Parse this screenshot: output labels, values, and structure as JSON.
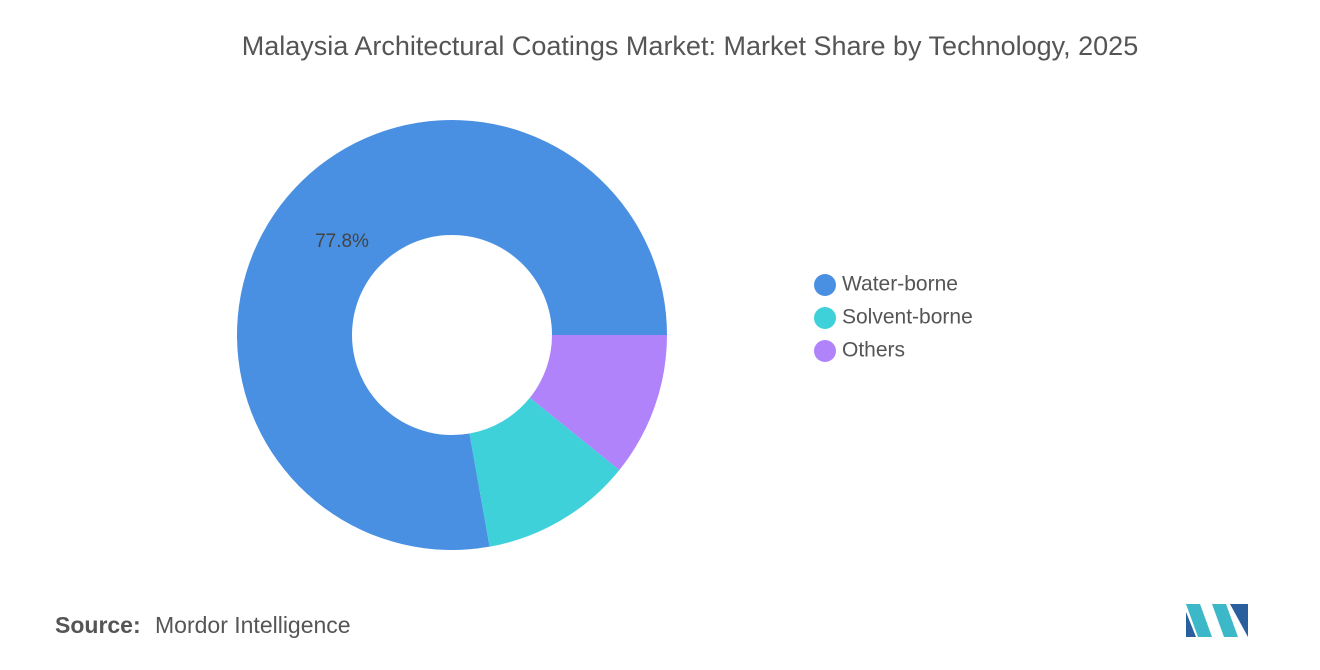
{
  "chart_data": {
    "type": "pie",
    "title": "Malaysia Architectural Coatings Market: Market Share by Technology, 2025",
    "categories": [
      "Water-borne",
      "Solvent-borne",
      "Others"
    ],
    "values": [
      77.8,
      11.4,
      10.8
    ],
    "value_labels": [
      "77.8%",
      null,
      null
    ],
    "colors": [
      "#4a90e2",
      "#3ed1da",
      "#b083fb"
    ],
    "legend": "right"
  },
  "source": {
    "label": "Source:",
    "text": "Mordor Intelligence"
  }
}
